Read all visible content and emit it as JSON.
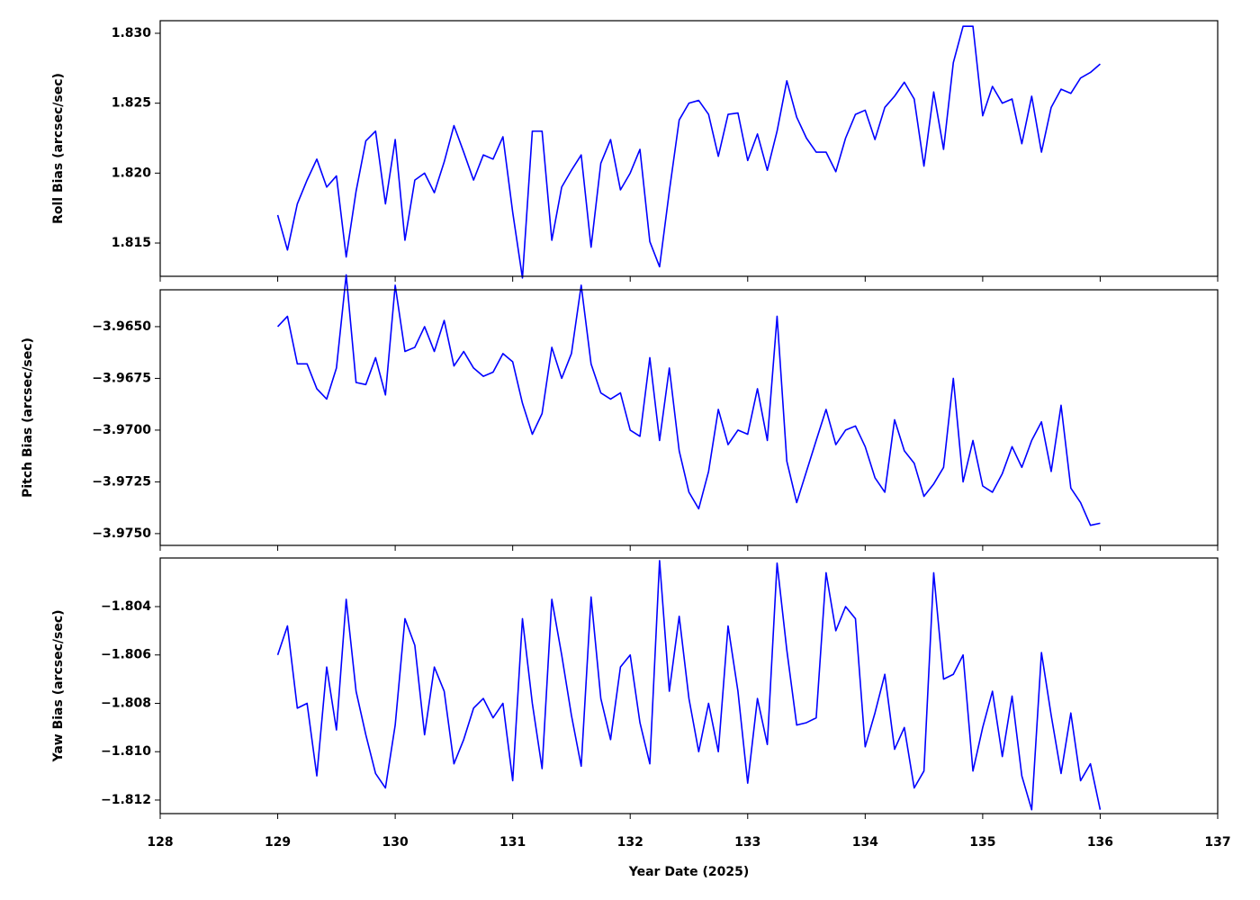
{
  "chart_data": [
    {
      "type": "line",
      "ylabel": "Roll Bias (arcsec/sec)",
      "ylim": [
        1.81262,
        1.8309
      ],
      "yticks": [
        {
          "value": 1.815,
          "label": "1.815"
        },
        {
          "value": 1.82,
          "label": "1.820"
        },
        {
          "value": 1.825,
          "label": "1.825"
        },
        {
          "value": 1.83,
          "label": "1.830"
        }
      ],
      "series": [
        {
          "color": "#0000ff",
          "values": [
            1.817,
            1.8145,
            1.8178,
            1.8195,
            1.821,
            1.819,
            1.8198,
            1.814,
            1.8187,
            1.8223,
            1.823,
            1.8178,
            1.8224,
            1.8152,
            1.8195,
            1.82,
            1.8186,
            1.8208,
            1.8234,
            1.8215,
            1.8195,
            1.8213,
            1.821,
            1.8226,
            1.8172,
            1.8125,
            1.823,
            1.823,
            1.8152,
            1.819,
            1.8202,
            1.8213,
            1.8147,
            1.8207,
            1.8224,
            1.8188,
            1.82,
            1.8217,
            1.8151,
            1.8133,
            1.8187,
            1.8238,
            1.825,
            1.8252,
            1.8242,
            1.8212,
            1.8242,
            1.8243,
            1.8209,
            1.8228,
            1.8202,
            1.823,
            1.8266,
            1.824,
            1.8225,
            1.8215,
            1.8215,
            1.8201,
            1.8225,
            1.8242,
            1.8245,
            1.8224,
            1.8247,
            1.8255,
            1.8265,
            1.8253,
            1.8205,
            1.8258,
            1.8217,
            1.8279,
            1.8305,
            1.8305,
            1.8241,
            1.8262,
            1.825,
            1.8253,
            1.8221,
            1.8255,
            1.8215,
            1.8247,
            1.826,
            1.8257,
            1.8268,
            1.8272,
            1.8278
          ]
        }
      ]
    },
    {
      "type": "line",
      "ylabel": "Pitch Bias (arcsec/sec)",
      "ylim": [
        -3.97557,
        -3.96322
      ],
      "yticks": [
        {
          "value": -3.975,
          "label": "−3.9750"
        },
        {
          "value": -3.9725,
          "label": "−3.9725"
        },
        {
          "value": -3.97,
          "label": "−3.9700"
        },
        {
          "value": -3.9675,
          "label": "−3.9675"
        },
        {
          "value": -3.965,
          "label": "−3.9650"
        }
      ],
      "series": [
        {
          "color": "#0000ff",
          "values": [
            -3.965,
            -3.9645,
            -3.9668,
            -3.9668,
            -3.968,
            -3.9685,
            -3.967,
            -3.9625,
            -3.9677,
            -3.9678,
            -3.9665,
            -3.9683,
            -3.963,
            -3.9662,
            -3.966,
            -3.965,
            -3.9662,
            -3.9647,
            -3.9669,
            -3.9662,
            -3.967,
            -3.9674,
            -3.9672,
            -3.9663,
            -3.9667,
            -3.9687,
            -3.9702,
            -3.9692,
            -3.966,
            -3.9675,
            -3.9663,
            -3.963,
            -3.9668,
            -3.9682,
            -3.9685,
            -3.9682,
            -3.97,
            -3.9703,
            -3.9665,
            -3.9705,
            -3.967,
            -3.971,
            -3.973,
            -3.9738,
            -3.972,
            -3.969,
            -3.9707,
            -3.97,
            -3.9702,
            -3.968,
            -3.9705,
            -3.9645,
            -3.9715,
            -3.9735,
            -3.972,
            -3.9705,
            -3.969,
            -3.9707,
            -3.97,
            -3.9698,
            -3.9708,
            -3.9723,
            -3.973,
            -3.9695,
            -3.971,
            -3.9716,
            -3.9732,
            -3.9726,
            -3.9718,
            -3.9675,
            -3.9725,
            -3.9705,
            -3.9727,
            -3.973,
            -3.9721,
            -3.9708,
            -3.9718,
            -3.9705,
            -3.9696,
            -3.972,
            -3.9688,
            -3.9728,
            -3.9735,
            -3.9746,
            -3.9745
          ]
        }
      ]
    },
    {
      "type": "line",
      "ylabel": "Yaw Bias (arcsec/sec)",
      "xlabel": "Year Date (2025)",
      "ylim": [
        -1.81256,
        -1.80199
      ],
      "xlim": [
        128,
        137
      ],
      "xticks": [
        128,
        129,
        130,
        131,
        132,
        133,
        134,
        135,
        136,
        137
      ],
      "yticks": [
        {
          "value": -1.812,
          "label": "−1.812"
        },
        {
          "value": -1.81,
          "label": "−1.810"
        },
        {
          "value": -1.808,
          "label": "−1.808"
        },
        {
          "value": -1.806,
          "label": "−1.806"
        },
        {
          "value": -1.804,
          "label": "−1.804"
        }
      ],
      "x": [
        129,
        129.083,
        129.167,
        129.25,
        129.333,
        129.417,
        129.5,
        129.583,
        129.667,
        129.75,
        129.833,
        129.917,
        130,
        130.083,
        130.167,
        130.25,
        130.333,
        130.417,
        130.5,
        130.583,
        130.667,
        130.75,
        130.833,
        130.917,
        131,
        131.083,
        131.167,
        131.25,
        131.333,
        131.417,
        131.5,
        131.583,
        131.667,
        131.75,
        131.833,
        131.917,
        132,
        132.083,
        132.167,
        132.25,
        132.333,
        132.417,
        132.5,
        132.583,
        132.667,
        132.75,
        132.833,
        132.917,
        133,
        133.083,
        133.167,
        133.25,
        133.333,
        133.417,
        133.5,
        133.583,
        133.667,
        133.75,
        133.833,
        133.917,
        134,
        134.083,
        134.167,
        134.25,
        134.333,
        134.417,
        134.5,
        134.583,
        134.667,
        134.75,
        134.833,
        134.917,
        135,
        135.083,
        135.167,
        135.25,
        135.333,
        135.417,
        135.5,
        135.583,
        135.667,
        135.75,
        135.833,
        135.917,
        136
      ],
      "series": [
        {
          "color": "#0000ff",
          "values": [
            -1.806,
            -1.8048,
            -1.8082,
            -1.808,
            -1.811,
            -1.8065,
            -1.8091,
            -1.8037,
            -1.8075,
            -1.8093,
            -1.8109,
            -1.8115,
            -1.8089,
            -1.8045,
            -1.8056,
            -1.8093,
            -1.8065,
            -1.8075,
            -1.8105,
            -1.8095,
            -1.8082,
            -1.8078,
            -1.8086,
            -1.808,
            -1.8112,
            -1.8045,
            -1.808,
            -1.8107,
            -1.8037,
            -1.806,
            -1.8085,
            -1.8106,
            -1.8036,
            -1.8078,
            -1.8095,
            -1.8065,
            -1.806,
            -1.8088,
            -1.8105,
            -1.8021,
            -1.8075,
            -1.8044,
            -1.8078,
            -1.81,
            -1.808,
            -1.81,
            -1.8048,
            -1.8075,
            -1.8113,
            -1.8078,
            -1.8097,
            -1.8022,
            -1.8058,
            -1.8089,
            -1.8088,
            -1.8086,
            -1.8026,
            -1.805,
            -1.804,
            -1.8045,
            -1.8098,
            -1.8084,
            -1.8068,
            -1.8099,
            -1.809,
            -1.8115,
            -1.8108,
            -1.8026,
            -1.807,
            -1.8068,
            -1.806,
            -1.8108,
            -1.809,
            -1.8075,
            -1.8102,
            -1.8077,
            -1.811,
            -1.8124,
            -1.8059,
            -1.8085,
            -1.8109,
            -1.8084,
            -1.8112,
            -1.8105,
            -1.8124
          ]
        }
      ]
    }
  ]
}
